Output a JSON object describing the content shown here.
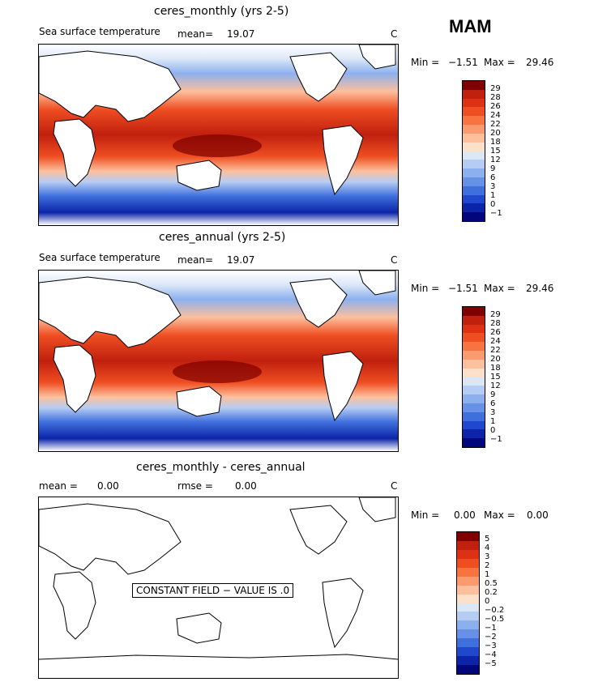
{
  "season": "MAM",
  "panels": [
    {
      "title": "ceres_monthly (yrs 2-5)",
      "variable": "Sea surface temperature",
      "mean_label": "mean=",
      "mean_value": "19.07",
      "unit": "C",
      "min_label": "Min =",
      "min_value": "−1.51",
      "max_label": "Max =",
      "max_value": "29.46"
    },
    {
      "title": "ceres_annual (yrs 2-5)",
      "variable": "Sea surface temperature",
      "mean_label": "mean=",
      "mean_value": "19.07",
      "unit": "C",
      "min_label": "Min =",
      "min_value": "−1.51",
      "max_label": "Max =",
      "max_value": "29.46"
    },
    {
      "title": "ceres_monthly - ceres_annual",
      "mean_label": "mean =",
      "mean_value": "0.00",
      "rmse_label": "rmse =",
      "rmse_value": "0.00",
      "unit": "C",
      "min_label": "Min =",
      "min_value": "0.00",
      "max_label": "Max =",
      "max_value": "0.00",
      "message": "CONSTANT FIELD − VALUE IS .0"
    }
  ],
  "colorbar_sst": {
    "labels": [
      "29",
      "28",
      "26",
      "24",
      "22",
      "20",
      "18",
      "15",
      "12",
      "9",
      "6",
      "3",
      "1",
      "0",
      "−1"
    ],
    "colors": [
      "#7f0000",
      "#c0200e",
      "#de3012",
      "#ef4e22",
      "#f7733f",
      "#fb9a6f",
      "#fdbf9c",
      "#fde0ca",
      "#dbe7f7",
      "#b6cdf3",
      "#8cb0ee",
      "#6691e7",
      "#3f6fdd",
      "#1f48cc",
      "#0b24a8",
      "#01067a"
    ]
  },
  "colorbar_diff": {
    "labels": [
      "5",
      "4",
      "3",
      "2",
      "1",
      "0.5",
      "0.2",
      "0",
      "−0.2",
      "−0.5",
      "−1",
      "−2",
      "−3",
      "−4",
      "−5"
    ],
    "colors": [
      "#7f0000",
      "#c0200e",
      "#de3012",
      "#ef4e22",
      "#f7733f",
      "#fb9a6f",
      "#fdbf9c",
      "#fde0ca",
      "#dbe7f7",
      "#b6cdf3",
      "#8cb0ee",
      "#6691e7",
      "#3f6fdd",
      "#1f48cc",
      "#0b24a8",
      "#01067a"
    ]
  },
  "chart_data": [
    {
      "type": "heatmap",
      "title": "ceres_monthly (yrs 2-5)",
      "subtitle": "Sea surface temperature",
      "mean": 19.07,
      "unit": "C",
      "min": -1.51,
      "max": 29.46,
      "contour_levels": [
        -1,
        0,
        1,
        3,
        6,
        9,
        12,
        15,
        18,
        20,
        22,
        24,
        26,
        28,
        29
      ]
    },
    {
      "type": "heatmap",
      "title": "ceres_annual (yrs 2-5)",
      "subtitle": "Sea surface temperature",
      "mean": 19.07,
      "unit": "C",
      "min": -1.51,
      "max": 29.46,
      "contour_levels": [
        -1,
        0,
        1,
        3,
        6,
        9,
        12,
        15,
        18,
        20,
        22,
        24,
        26,
        28,
        29
      ]
    },
    {
      "type": "heatmap",
      "title": "ceres_monthly - ceres_annual",
      "mean": 0.0,
      "rmse": 0.0,
      "unit": "C",
      "min": 0.0,
      "max": 0.0,
      "contour_levels": [
        -5,
        -4,
        -3,
        -2,
        -1,
        -0.5,
        -0.2,
        0,
        0.2,
        0.5,
        1,
        2,
        3,
        4,
        5
      ]
    }
  ]
}
